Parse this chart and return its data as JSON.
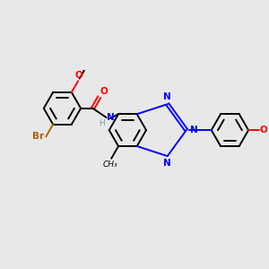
{
  "background_color": "#e8e8e8",
  "bond_color": "#000000",
  "N_color": "#0000ff",
  "O_color": "#ff0000",
  "Br_color": "#b36000",
  "H_color": "#5fa8a8",
  "figsize": [
    3.0,
    3.0
  ],
  "dpi": 100,
  "xlim": [
    0,
    12
  ],
  "ylim": [
    0,
    12
  ]
}
